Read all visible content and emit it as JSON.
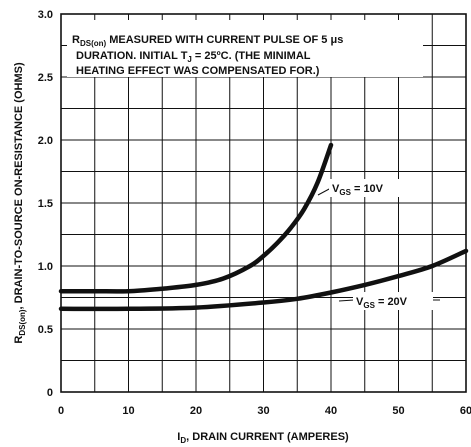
{
  "chart_data": {
    "type": "line",
    "x_ticks": [
      "0",
      "10",
      "20",
      "30",
      "40",
      "50",
      "60"
    ],
    "y_ticks": [
      "0",
      "0.5",
      "1.0",
      "1.5",
      "2.0",
      "2.5",
      "3.0"
    ],
    "xlim": [
      0,
      60
    ],
    "ylim": [
      0,
      3.0
    ],
    "grid": true,
    "xlabel": {
      "pre": "I",
      "sub": "D",
      "post": ", DRAIN CURRENT (AMPERES)"
    },
    "ylabel": {
      "pre": "R",
      "sub": "DS(on)",
      "post": ", DRAIN-TO-SOURCE ON-RESISTANCE (OHMS)"
    },
    "annotation": {
      "line1": {
        "pre": "R",
        "sub": "DS(on)",
        "post": " MEASURED WITH CURRENT PULSE OF 5 μs"
      },
      "line2": {
        "pre": "DURATION. INITIAL T",
        "sub": "J",
        "post": " = 25ºC. (THE MINIMAL"
      },
      "line3": "HEATING EFFECT WAS COMPENSATED FOR.)"
    },
    "series": [
      {
        "name": {
          "pre": "V",
          "sub": "GS",
          "post": " = 10V"
        },
        "x": [
          0,
          5,
          10,
          15,
          20,
          24,
          28,
          30,
          32,
          34,
          36,
          38,
          40
        ],
        "y": [
          0.8,
          0.8,
          0.8,
          0.82,
          0.85,
          0.9,
          1.0,
          1.08,
          1.18,
          1.3,
          1.45,
          1.66,
          1.96
        ]
      },
      {
        "name": {
          "pre": "V",
          "sub": "GS",
          "post": " = 20V"
        },
        "x": [
          0,
          10,
          20,
          30,
          35,
          40,
          45,
          50,
          55,
          60
        ],
        "y": [
          0.66,
          0.66,
          0.67,
          0.71,
          0.74,
          0.79,
          0.85,
          0.92,
          1.0,
          1.12
        ]
      }
    ]
  }
}
